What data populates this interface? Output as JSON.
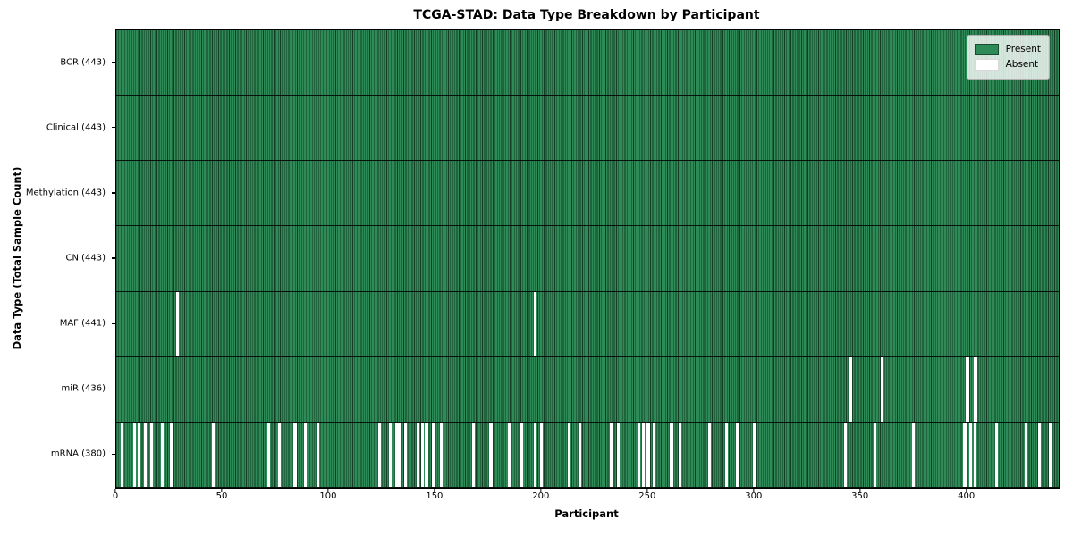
{
  "title": "TCGA-STAD: Data Type Breakdown by Participant",
  "axes": {
    "x_label": "Participant",
    "y_label": "Data Type (Total Sample Count)",
    "x_ticks": [
      0,
      50,
      100,
      150,
      200,
      250,
      300,
      350,
      400
    ],
    "x_min": 0,
    "x_max": 443
  },
  "legend": {
    "items": [
      {
        "label": "Present",
        "key": "present"
      },
      {
        "label": "Absent",
        "key": "absent"
      }
    ]
  },
  "colors": {
    "present": "#2e8b57",
    "present_edge": "#1a4c30",
    "absent": "#ffffff",
    "legend_border": "#b0b0b0"
  },
  "chart_data": {
    "type": "heatmap",
    "title": "TCGA-STAD: Data Type Breakdown by Participant",
    "xlabel": "Participant",
    "ylabel": "Data Type (Total Sample Count)",
    "x_range": [
      0,
      443
    ],
    "n_participants": 443,
    "cell_values": "binary presence (1=Present green, 0=Absent white)",
    "grid": false,
    "legend_position": "upper right",
    "rows": [
      {
        "label": "BCR (443)",
        "data_type": "BCR",
        "total_present": 443,
        "absent_participants": []
      },
      {
        "label": "Clinical (443)",
        "data_type": "Clinical",
        "total_present": 443,
        "absent_participants": []
      },
      {
        "label": "Methylation (443)",
        "data_type": "Methylation",
        "total_present": 443,
        "absent_participants": []
      },
      {
        "label": "CN (443)",
        "data_type": "CN",
        "total_present": 443,
        "absent_participants": []
      },
      {
        "label": "MAF (441)",
        "data_type": "MAF",
        "total_present": 441,
        "absent_participants": [
          28,
          196
        ]
      },
      {
        "label": "miR (436)",
        "data_type": "miR",
        "total_present": 436,
        "absent_participants": [
          344,
          345,
          359,
          399,
          400,
          403,
          404
        ]
      },
      {
        "label": "mRNA (380)",
        "data_type": "mRNA",
        "total_present": 380,
        "absent_participants": [
          2,
          8,
          10,
          13,
          16,
          21,
          25,
          45,
          71,
          76,
          83,
          84,
          88,
          94,
          123,
          128,
          131,
          132,
          133,
          135,
          141,
          143,
          145,
          146,
          148,
          152,
          167,
          175,
          176,
          184,
          190,
          196,
          199,
          212,
          217,
          232,
          235,
          245,
          247,
          249,
          250,
          252,
          260,
          261,
          264,
          278,
          286,
          291,
          292,
          299,
          300,
          342,
          356,
          374,
          398,
          399,
          401,
          403,
          413,
          427,
          433,
          438,
          439
        ]
      }
    ]
  }
}
